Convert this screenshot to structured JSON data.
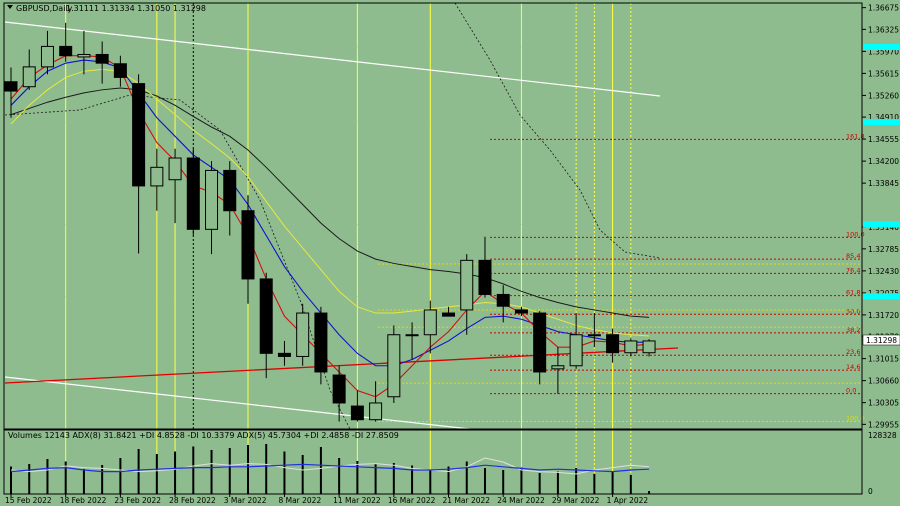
{
  "header": {
    "symbol": "GBPUSD,Daily",
    "ohlc": "1.31111 1.31334 1.31050 1.31298"
  },
  "volume_header": "Volumes 12143  ADX(8) 31.8421 +DI 4.8528 -DI 10.3379  ADX(5) 45.7304 +DI 2.4858 -DI 27.8509",
  "current_price_label": "1.31298",
  "volume_axis": {
    "top_label": "128328",
    "bottom_label": "0"
  },
  "colors": {
    "background": "#8fbc8f",
    "bull_candle": "#8fbc8f",
    "bear_candle": "#000000",
    "ma_red": "#d01010",
    "ma_blue": "#1010d0",
    "ma_yellow": "#e8e840",
    "ma_black": "#1a1a1a",
    "vline": "#ffff40",
    "trendline_white": "#ffffff",
    "trendline_red": "#dd0000",
    "cyan": "#00ffff",
    "fib_red": "#cc0000",
    "fib_yellow": "#dddd00",
    "adx_light": "#e0e0e0",
    "adx_blue": "#2030e0"
  },
  "chart_data": {
    "type": "candlestick",
    "price_axis": {
      "min": 1.2988,
      "max": 1.3675,
      "ticks": [
        "1.36675",
        "1.36325",
        "1.35970",
        "1.35615",
        "1.35260",
        "1.34910",
        "1.34555",
        "1.34200",
        "1.33845",
        "1.33140",
        "1.32785",
        "1.32430",
        "1.32075",
        "1.31720",
        "1.31370",
        "1.31015",
        "1.30660",
        "1.30305",
        "1.29955"
      ],
      "cyan_markers": [
        1.3604,
        1.3483,
        1.3318,
        1.3202
      ]
    },
    "x_labels": [
      {
        "label": "15 Feb 2022",
        "i": 0
      },
      {
        "label": "18 Feb 2022",
        "i": 3
      },
      {
        "label": "23 Feb 2022",
        "i": 6
      },
      {
        "label": "28 Feb 2022",
        "i": 9
      },
      {
        "label": "3 Mar 2022",
        "i": 12
      },
      {
        "label": "8 Mar 2022",
        "i": 15
      },
      {
        "label": "11 Mar 2022",
        "i": 18
      },
      {
        "label": "16 Mar 2022",
        "i": 21
      },
      {
        "label": "21 Mar 2022",
        "i": 24
      },
      {
        "label": "24 Mar 2022",
        "i": 27
      },
      {
        "label": "29 Mar 2022",
        "i": 30
      },
      {
        "label": "1 Apr 2022",
        "i": 33
      }
    ],
    "candles": [
      {
        "o": 1.3548,
        "h": 1.3571,
        "l": 1.349,
        "c": 1.3533
      },
      {
        "o": 1.354,
        "h": 1.36,
        "l": 1.3535,
        "c": 1.3572
      },
      {
        "o": 1.3572,
        "h": 1.363,
        "l": 1.356,
        "c": 1.3605
      },
      {
        "o": 1.3605,
        "h": 1.3643,
        "l": 1.358,
        "c": 1.359
      },
      {
        "o": 1.3588,
        "h": 1.363,
        "l": 1.356,
        "c": 1.3592
      },
      {
        "o": 1.3592,
        "h": 1.3613,
        "l": 1.3545,
        "c": 1.3578
      },
      {
        "o": 1.3577,
        "h": 1.359,
        "l": 1.354,
        "c": 1.3555
      },
      {
        "o": 1.3545,
        "h": 1.356,
        "l": 1.3271,
        "c": 1.338
      },
      {
        "o": 1.338,
        "h": 1.344,
        "l": 1.334,
        "c": 1.341
      },
      {
        "o": 1.339,
        "h": 1.344,
        "l": 1.332,
        "c": 1.3425
      },
      {
        "o": 1.3425,
        "h": 1.344,
        "l": 1.33,
        "c": 1.331
      },
      {
        "o": 1.331,
        "h": 1.342,
        "l": 1.327,
        "c": 1.3405
      },
      {
        "o": 1.3405,
        "h": 1.342,
        "l": 1.33,
        "c": 1.334
      },
      {
        "o": 1.334,
        "h": 1.3365,
        "l": 1.319,
        "c": 1.323
      },
      {
        "o": 1.323,
        "h": 1.324,
        "l": 1.307,
        "c": 1.311
      },
      {
        "o": 1.311,
        "h": 1.313,
        "l": 1.309,
        "c": 1.3105
      },
      {
        "o": 1.3105,
        "h": 1.319,
        "l": 1.309,
        "c": 1.3175
      },
      {
        "o": 1.3175,
        "h": 1.3185,
        "l": 1.306,
        "c": 1.308
      },
      {
        "o": 1.3075,
        "h": 1.309,
        "l": 1.3,
        "c": 1.303
      },
      {
        "o": 1.3025,
        "h": 1.305,
        "l": 1.3,
        "c": 1.3003
      },
      {
        "o": 1.3003,
        "h": 1.3065,
        "l": 1.3,
        "c": 1.303
      },
      {
        "o": 1.304,
        "h": 1.3155,
        "l": 1.303,
        "c": 1.314
      },
      {
        "o": 1.314,
        "h": 1.316,
        "l": 1.31,
        "c": 1.314
      },
      {
        "o": 1.314,
        "h": 1.3195,
        "l": 1.311,
        "c": 1.318
      },
      {
        "o": 1.3175,
        "h": 1.3185,
        "l": 1.317,
        "c": 1.317
      },
      {
        "o": 1.318,
        "h": 1.327,
        "l": 1.314,
        "c": 1.326
      },
      {
        "o": 1.326,
        "h": 1.3298,
        "l": 1.32,
        "c": 1.3205
      },
      {
        "o": 1.3205,
        "h": 1.322,
        "l": 1.316,
        "c": 1.3186
      },
      {
        "o": 1.318,
        "h": 1.3185,
        "l": 1.317,
        "c": 1.3175
      },
      {
        "o": 1.3175,
        "h": 1.3178,
        "l": 1.306,
        "c": 1.308
      },
      {
        "o": 1.3085,
        "h": 1.312,
        "l": 1.3045,
        "c": 1.309
      },
      {
        "o": 1.309,
        "h": 1.3175,
        "l": 1.3085,
        "c": 1.314
      },
      {
        "o": 1.314,
        "h": 1.3175,
        "l": 1.312,
        "c": 1.314
      },
      {
        "o": 1.314,
        "h": 1.315,
        "l": 1.3095,
        "c": 1.3111
      },
      {
        "o": 1.3111,
        "h": 1.3134,
        "l": 1.3105,
        "c": 1.313
      },
      {
        "o": 1.3111,
        "h": 1.3133,
        "l": 1.3105,
        "c": 1.313
      }
    ],
    "indicators": {
      "ma_red": [
        1.352,
        1.3555,
        1.3575,
        1.359,
        1.359,
        1.3588,
        1.357,
        1.35,
        1.345,
        1.342,
        1.338,
        1.337,
        1.335,
        1.33,
        1.323,
        1.317,
        1.314,
        1.311,
        1.308,
        1.305,
        1.304,
        1.306,
        1.309,
        1.312,
        1.3145,
        1.318,
        1.321,
        1.319,
        1.3175,
        1.3145,
        1.312,
        1.312,
        1.313,
        1.3128,
        1.3122,
        1.3125
      ],
      "ma_blue": [
        1.351,
        1.354,
        1.3565,
        1.3578,
        1.3583,
        1.358,
        1.357,
        1.353,
        1.349,
        1.346,
        1.343,
        1.341,
        1.339,
        1.335,
        1.33,
        1.325,
        1.321,
        1.3175,
        1.314,
        1.311,
        1.309,
        1.309,
        1.31,
        1.3115,
        1.313,
        1.315,
        1.3168,
        1.317,
        1.3165,
        1.3155,
        1.3145,
        1.314,
        1.3135,
        1.313,
        1.3128,
        1.3128
      ],
      "ma_yellow": [
        1.348,
        1.351,
        1.3535,
        1.3555,
        1.3565,
        1.3568,
        1.3565,
        1.3545,
        1.352,
        1.3495,
        1.347,
        1.3448,
        1.3425,
        1.3395,
        1.3355,
        1.3315,
        1.328,
        1.3245,
        1.321,
        1.3185,
        1.3175,
        1.3175,
        1.3178,
        1.3182,
        1.3185,
        1.3188,
        1.3192,
        1.319,
        1.3185,
        1.3175,
        1.3165,
        1.3155,
        1.3148,
        1.3143,
        1.314,
        1.3138
      ],
      "ma_black": [
        1.3495,
        1.3505,
        1.3515,
        1.3523,
        1.353,
        1.3535,
        1.3538,
        1.3535,
        1.3525,
        1.351,
        1.3492,
        1.3475,
        1.346,
        1.3438,
        1.341,
        1.338,
        1.335,
        1.332,
        1.3295,
        1.3275,
        1.3262,
        1.3255,
        1.325,
        1.3245,
        1.3242,
        1.3238,
        1.3232,
        1.3222,
        1.321,
        1.32,
        1.3192,
        1.3185,
        1.318,
        1.3175,
        1.317,
        1.3168
      ]
    },
    "fib_levels": [
      {
        "label": "161.8",
        "price": 1.3455,
        "color": "red"
      },
      {
        "label": "100.0",
        "price": 1.3297,
        "color": "red"
      },
      {
        "label": "85.4",
        "price": 1.3262,
        "color": "red"
      },
      {
        "label": "76.4",
        "price": 1.3239,
        "color": "red"
      },
      {
        "label": "61.8",
        "price": 1.3203,
        "color": "red"
      },
      {
        "label": "50.0",
        "price": 1.3173,
        "color": "red"
      },
      {
        "label": "38.2",
        "price": 1.3143,
        "color": "red"
      },
      {
        "label": "23.6",
        "price": 1.3107,
        "color": "red"
      },
      {
        "label": "14.6",
        "price": 1.3083,
        "color": "red"
      },
      {
        "label": "0.0",
        "price": 1.3045,
        "color": "red"
      },
      {
        "label": "",
        "price": 1.3254,
        "color": "yellow"
      },
      {
        "label": "",
        "price": 1.318,
        "color": "yellow"
      },
      {
        "label": "",
        "price": 1.3152,
        "color": "yellow"
      },
      {
        "label": "",
        "price": 1.3062,
        "color": "yellow"
      },
      {
        "label": "100.0",
        "price": 1.3,
        "color": "yellow"
      }
    ],
    "volumes": [
      55,
      60,
      70,
      65,
      50,
      58,
      72,
      90,
      80,
      85,
      95,
      88,
      92,
      98,
      100,
      85,
      78,
      94,
      72,
      66,
      60,
      62,
      57,
      48,
      55,
      65,
      52,
      48,
      53,
      42,
      45,
      52,
      40,
      44,
      38,
      6
    ],
    "adx_light": [
      30,
      28,
      30,
      35,
      33,
      32,
      30,
      28,
      29,
      31,
      35,
      38,
      36,
      38,
      37,
      33,
      30,
      32,
      35,
      37,
      38,
      36,
      32,
      30,
      28,
      34,
      45,
      40,
      30,
      28,
      27,
      25,
      30,
      33,
      36,
      34
    ],
    "adx_blue": [
      28,
      30,
      32,
      33,
      30,
      28,
      28,
      30,
      31,
      32,
      33,
      33,
      34,
      34,
      35,
      36,
      37,
      36,
      35,
      34,
      33,
      32,
      30,
      30,
      31,
      33,
      36,
      34,
      32,
      30,
      31,
      30,
      29,
      28,
      30,
      31
    ]
  }
}
